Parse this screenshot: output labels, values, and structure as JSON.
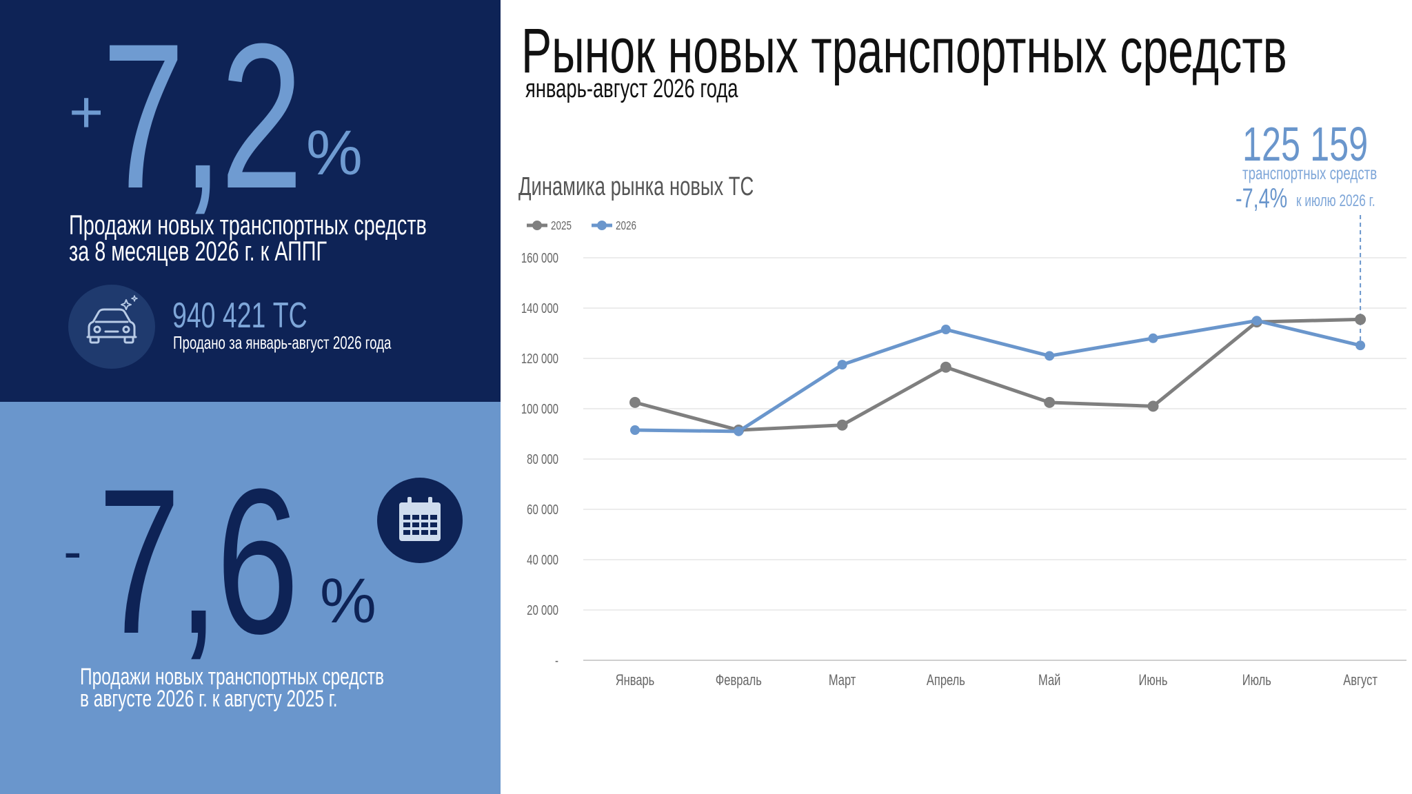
{
  "kpi_top": {
    "sign": "+",
    "value": "7,2",
    "unit": "%",
    "desc_line1": "Продажи новых транспортных средств",
    "desc_line2": "за 8 месяцев 2026 г. к АППГ",
    "icon": "car-icon"
  },
  "sold": {
    "value": "940 421 ТС",
    "label": "Продано за январь-август 2026 года"
  },
  "kpi_bottom": {
    "sign": "-",
    "value": "7,6",
    "unit": "%",
    "desc_line1": "Продажи новых транспортных средств",
    "desc_line2": "в августе 2026 г. к августу 2025 г.",
    "icon": "calendar-icon"
  },
  "header": {
    "title": "Рынок новых транспортных средств",
    "subtitle": "январь-август 2026 года"
  },
  "annotation": {
    "value": "125 159",
    "unit": "транспортных средств",
    "change": "-7,4%",
    "change_label": "к июлю 2026 г."
  },
  "colors": {
    "navy": "#0e2356",
    "light_blue": "#6a96cc",
    "series_2025": "#7f7f7f",
    "series_2026": "#6a96cc"
  },
  "chart_data": {
    "type": "line",
    "title": "Динамика рынка новых ТС",
    "categories": [
      "Январь",
      "Февраль",
      "Март",
      "Апрель",
      "Май",
      "Июнь",
      "Июль",
      "Август"
    ],
    "series": [
      {
        "name": "2025",
        "color": "#7f7f7f",
        "values": [
          102500,
          91500,
          93500,
          116500,
          102500,
          101000,
          134500,
          135500
        ]
      },
      {
        "name": "2026",
        "color": "#6a96cc",
        "values": [
          91500,
          91000,
          117500,
          131500,
          121000,
          128000,
          135000,
          125159
        ]
      }
    ],
    "y_ticks": [
      "-",
      "20 000",
      "40 000",
      "60 000",
      "80 000",
      "100 000",
      "120 000",
      "140 000",
      "160 000"
    ],
    "ylim": [
      0,
      160000
    ],
    "grid": true,
    "legend": "top-left"
  }
}
